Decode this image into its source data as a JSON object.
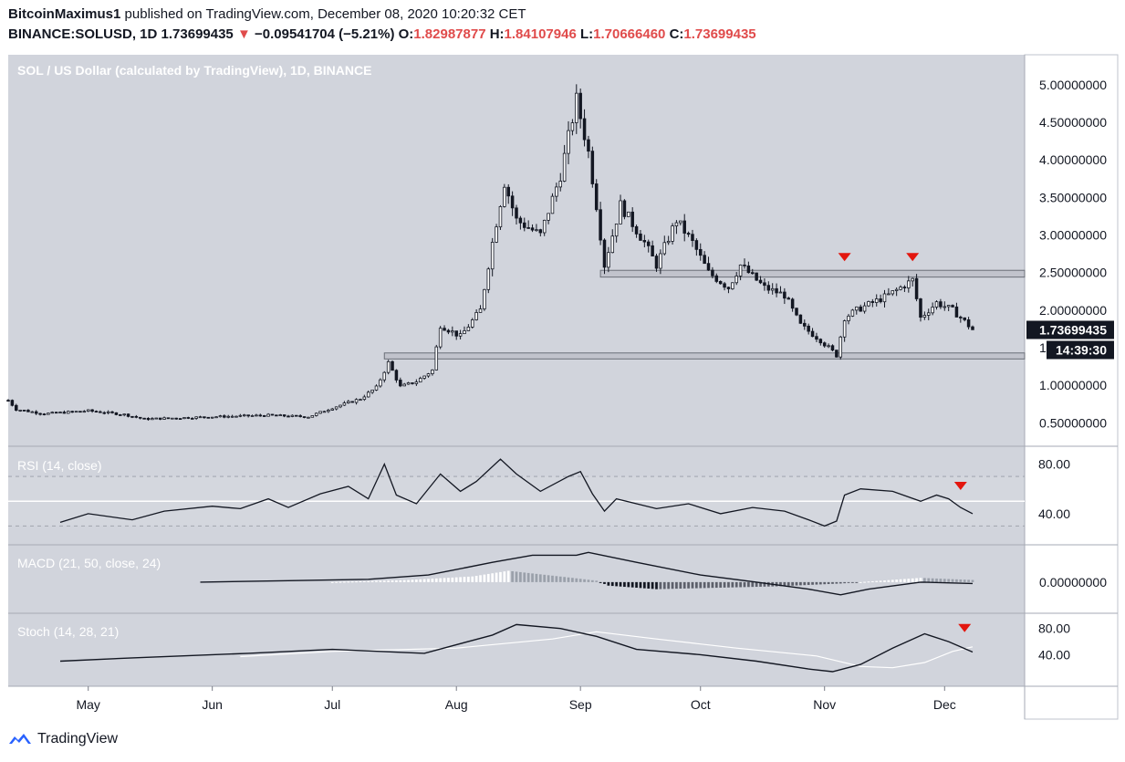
{
  "header": {
    "author": "BitcoinMaximus1",
    "published_text": "published on TradingView.com, December 08, 2020 10:20:32 CET",
    "symbol": "BINANCE:SOLUSD, 1D",
    "last": "1.73699435",
    "change_arrow": "▼",
    "change": "−0.09541704 (−5.21%)",
    "o_label": "O:",
    "o": "1.82987877",
    "h_label": "H:",
    "h": "1.84107946",
    "l_label": "L:",
    "l": "1.70666460",
    "c_label": "C:",
    "c": "1.73699435"
  },
  "brand": "TradingView",
  "chart_data": {
    "type": "candlestick",
    "title": "SOL / US Dollar (calculated by TradingView), 1D, BINANCE",
    "currency": "USD",
    "price_ylim": [
      0.2,
      5.4
    ],
    "price_ticks": [
      "0.50000000",
      "1.00000000",
      "1.50000000",
      "2.00000000",
      "2.50000000",
      "3.00000000",
      "3.50000000",
      "4.00000000",
      "4.50000000",
      "5.00000000"
    ],
    "last_price_label": "1.73699435",
    "countdown_label": "14:39:30",
    "x_months": [
      "May",
      "Jun",
      "Jul",
      "Aug",
      "Sep",
      "Oct",
      "Nov",
      "Dec"
    ],
    "x_range": [
      "2020-04-11",
      "2020-12-21"
    ],
    "month_starts": [
      "2020-05-01",
      "2020-06-01",
      "2020-07-01",
      "2020-08-01",
      "2020-09-01",
      "2020-10-01",
      "2020-11-01",
      "2020-12-01"
    ],
    "zones": [
      {
        "name": "resistance",
        "from_date": "2020-09-06",
        "to_date": "2020-12-21",
        "low": 2.44,
        "high": 2.53
      },
      {
        "name": "support",
        "from_date": "2020-07-14",
        "to_date": "2020-12-21",
        "low": 1.35,
        "high": 1.43
      }
    ],
    "markers": [
      "2020-11-06",
      "2020-11-23"
    ],
    "price_keypoints": [
      [
        "2020-04-11",
        0.8
      ],
      [
        "2020-04-13",
        0.68
      ],
      [
        "2020-04-20",
        0.62
      ],
      [
        "2020-05-01",
        0.66
      ],
      [
        "2020-05-10",
        0.61
      ],
      [
        "2020-05-15",
        0.55
      ],
      [
        "2020-06-01",
        0.58
      ],
      [
        "2020-06-15",
        0.6
      ],
      [
        "2020-06-25",
        0.58
      ],
      [
        "2020-07-01",
        0.7
      ],
      [
        "2020-07-08",
        0.82
      ],
      [
        "2020-07-12",
        0.97
      ],
      [
        "2020-07-15",
        1.3
      ],
      [
        "2020-07-18",
        0.98
      ],
      [
        "2020-07-22",
        1.05
      ],
      [
        "2020-07-26",
        1.2
      ],
      [
        "2020-07-28",
        1.8
      ],
      [
        "2020-08-02",
        1.65
      ],
      [
        "2020-08-07",
        2.0
      ],
      [
        "2020-08-10",
        2.9
      ],
      [
        "2020-08-13",
        3.7
      ],
      [
        "2020-08-16",
        3.2
      ],
      [
        "2020-08-22",
        3.0
      ],
      [
        "2020-08-27",
        3.8
      ],
      [
        "2020-08-31",
        4.8
      ],
      [
        "2020-09-03",
        4.1
      ],
      [
        "2020-09-05",
        3.4
      ],
      [
        "2020-09-07",
        2.6
      ],
      [
        "2020-09-11",
        3.4
      ],
      [
        "2020-09-17",
        2.9
      ],
      [
        "2020-09-20",
        2.6
      ],
      [
        "2020-09-25",
        3.2
      ],
      [
        "2020-09-29",
        2.9
      ],
      [
        "2020-10-03",
        2.5
      ],
      [
        "2020-10-08",
        2.3
      ],
      [
        "2020-10-11",
        2.6
      ],
      [
        "2020-10-17",
        2.3
      ],
      [
        "2020-10-22",
        2.2
      ],
      [
        "2020-10-26",
        1.8
      ],
      [
        "2020-10-31",
        1.6
      ],
      [
        "2020-11-04",
        1.4
      ],
      [
        "2020-11-06",
        1.9
      ],
      [
        "2020-11-09",
        2.0
      ],
      [
        "2020-11-13",
        2.1
      ],
      [
        "2020-11-17",
        2.2
      ],
      [
        "2020-11-20",
        2.3
      ],
      [
        "2020-11-23",
        2.4
      ],
      [
        "2020-11-25",
        1.9
      ],
      [
        "2020-11-29",
        2.1
      ],
      [
        "2020-12-03",
        2.0
      ],
      [
        "2020-12-06",
        1.85
      ],
      [
        "2020-12-08",
        1.74
      ]
    ],
    "panels": [
      {
        "name": "RSI (14, close)",
        "ticks": [
          "40.00",
          "80.00"
        ],
        "ylim": [
          20,
          90
        ],
        "bands": [
          30,
          70
        ],
        "midline": 50,
        "series": [
          [
            [
              "2020-04-24",
              33
            ],
            [
              "2020-05-01",
              40
            ],
            [
              "2020-05-12",
              35
            ],
            [
              "2020-05-20",
              42
            ],
            [
              "2020-06-01",
              46
            ],
            [
              "2020-06-08",
              44
            ],
            [
              "2020-06-15",
              52
            ],
            [
              "2020-06-20",
              45
            ],
            [
              "2020-06-28",
              56
            ],
            [
              "2020-07-05",
              62
            ],
            [
              "2020-07-10",
              52
            ],
            [
              "2020-07-14",
              80
            ],
            [
              "2020-07-17",
              55
            ],
            [
              "2020-07-22",
              48
            ],
            [
              "2020-07-28",
              72
            ],
            [
              "2020-08-02",
              58
            ],
            [
              "2020-08-06",
              66
            ],
            [
              "2020-08-12",
              84
            ],
            [
              "2020-08-16",
              72
            ],
            [
              "2020-08-22",
              58
            ],
            [
              "2020-08-29",
              70
            ],
            [
              "2020-09-01",
              74
            ],
            [
              "2020-09-04",
              56
            ],
            [
              "2020-09-07",
              42
            ],
            [
              "2020-09-10",
              52
            ],
            [
              "2020-09-20",
              44
            ],
            [
              "2020-09-28",
              48
            ],
            [
              "2020-10-06",
              40
            ],
            [
              "2020-10-14",
              45
            ],
            [
              "2020-10-22",
              42
            ],
            [
              "2020-10-28",
              35
            ],
            [
              "2020-11-01",
              30
            ],
            [
              "2020-11-04",
              34
            ],
            [
              "2020-11-06",
              55
            ],
            [
              "2020-11-10",
              60
            ],
            [
              "2020-11-18",
              58
            ],
            [
              "2020-11-25",
              50
            ],
            [
              "2020-11-29",
              55
            ],
            [
              "2020-12-02",
              52
            ],
            [
              "2020-12-05",
              45
            ],
            [
              "2020-12-08",
              40
            ]
          ]
        ]
      },
      {
        "name": "MACD (21, 50, close, 24)",
        "ticks": [
          "0.00000000"
        ],
        "ylim": [
          -0.35,
          0.45
        ],
        "macd_line": [
          [
            "2020-05-29",
            0.0
          ],
          [
            "2020-06-20",
            0.02
          ],
          [
            "2020-07-10",
            0.04
          ],
          [
            "2020-07-25",
            0.1
          ],
          [
            "2020-08-10",
            0.28
          ],
          [
            "2020-08-20",
            0.38
          ],
          [
            "2020-08-31",
            0.38
          ],
          [
            "2020-09-03",
            0.42
          ],
          [
            "2020-09-15",
            0.28
          ],
          [
            "2020-10-01",
            0.1
          ],
          [
            "2020-10-15",
            0.0
          ],
          [
            "2020-10-28",
            -0.1
          ],
          [
            "2020-11-05",
            -0.18
          ],
          [
            "2020-11-12",
            -0.1
          ],
          [
            "2020-11-25",
            0.0
          ],
          [
            "2020-12-08",
            -0.02
          ]
        ],
        "histogram_keypoints": [
          [
            "2020-07-01",
            0.0
          ],
          [
            "2020-07-20",
            0.03
          ],
          [
            "2020-08-05",
            0.08
          ],
          [
            "2020-08-14",
            0.16
          ],
          [
            "2020-08-30",
            0.06
          ],
          [
            "2020-09-05",
            0.02
          ],
          [
            "2020-09-08",
            -0.05
          ],
          [
            "2020-09-20",
            -0.1
          ],
          [
            "2020-10-05",
            -0.08
          ],
          [
            "2020-10-20",
            -0.06
          ],
          [
            "2020-11-05",
            -0.02
          ],
          [
            "2020-11-15",
            0.02
          ],
          [
            "2020-11-25",
            0.06
          ],
          [
            "2020-12-08",
            0.03
          ]
        ]
      },
      {
        "name": "Stoch (14, 28, 21)",
        "ticks": [
          "40.00",
          "80.00"
        ],
        "ylim": [
          0,
          95
        ],
        "k_line": [
          [
            "2020-04-24",
            30
          ],
          [
            "2020-05-12",
            35
          ],
          [
            "2020-06-10",
            42
          ],
          [
            "2020-07-01",
            48
          ],
          [
            "2020-07-24",
            42
          ],
          [
            "2020-08-10",
            70
          ],
          [
            "2020-08-16",
            86
          ],
          [
            "2020-08-27",
            80
          ],
          [
            "2020-09-05",
            68
          ],
          [
            "2020-09-15",
            48
          ],
          [
            "2020-10-01",
            40
          ],
          [
            "2020-10-15",
            30
          ],
          [
            "2020-10-28",
            18
          ],
          [
            "2020-11-03",
            14
          ],
          [
            "2020-11-10",
            25
          ],
          [
            "2020-11-18",
            50
          ],
          [
            "2020-11-26",
            72
          ],
          [
            "2020-12-02",
            60
          ],
          [
            "2020-12-08",
            44
          ]
        ],
        "d_line": [
          [
            "2020-06-08",
            37
          ],
          [
            "2020-07-01",
            45
          ],
          [
            "2020-08-01",
            50
          ],
          [
            "2020-08-25",
            64
          ],
          [
            "2020-09-05",
            75
          ],
          [
            "2020-09-20",
            64
          ],
          [
            "2020-10-10",
            50
          ],
          [
            "2020-10-30",
            38
          ],
          [
            "2020-11-10",
            22
          ],
          [
            "2020-11-18",
            20
          ],
          [
            "2020-11-26",
            28
          ],
          [
            "2020-12-03",
            45
          ],
          [
            "2020-12-08",
            52
          ]
        ],
        "marker": "2020-12-06"
      }
    ]
  },
  "colors": {
    "pane_bg": "#d1d4dc",
    "marker": "#e3160e",
    "grid": "#bfc3cc",
    "text_on_chart": "#ffffff",
    "label_bg": "#131722"
  }
}
